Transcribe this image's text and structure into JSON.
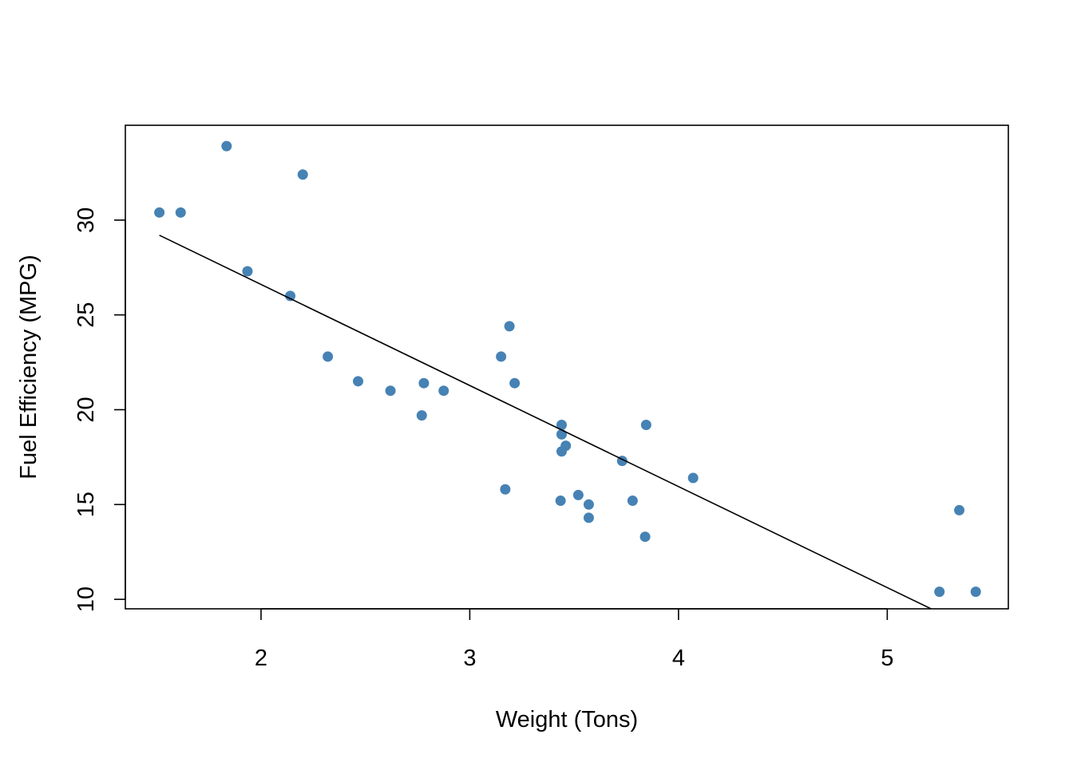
{
  "chart_data": {
    "type": "scatter",
    "title": "",
    "xlabel": "Weight (Tons)",
    "ylabel": "Fuel Efficiency (MPG)",
    "xlim": [
      1.35,
      5.58
    ],
    "ylim": [
      9.5,
      35.0
    ],
    "x_ticks": [
      2,
      3,
      4,
      5
    ],
    "y_ticks": [
      10,
      15,
      20,
      25,
      30
    ],
    "x_tick_labels": [
      "2",
      "3",
      "4",
      "5"
    ],
    "y_tick_labels": [
      "10",
      "15",
      "20",
      "25",
      "30"
    ],
    "grid": false,
    "legend": "none",
    "point_color": "#4682B4",
    "line_color": "#000000",
    "points": [
      {
        "x": 2.62,
        "y": 21.0
      },
      {
        "x": 2.875,
        "y": 21.0
      },
      {
        "x": 2.32,
        "y": 22.8
      },
      {
        "x": 3.215,
        "y": 21.4
      },
      {
        "x": 3.44,
        "y": 18.7
      },
      {
        "x": 3.46,
        "y": 18.1
      },
      {
        "x": 3.57,
        "y": 14.3
      },
      {
        "x": 3.19,
        "y": 24.4
      },
      {
        "x": 3.15,
        "y": 22.8
      },
      {
        "x": 3.44,
        "y": 19.2
      },
      {
        "x": 3.44,
        "y": 17.8
      },
      {
        "x": 4.07,
        "y": 16.4
      },
      {
        "x": 3.73,
        "y": 17.3
      },
      {
        "x": 3.78,
        "y": 15.2
      },
      {
        "x": 5.25,
        "y": 10.4
      },
      {
        "x": 5.424,
        "y": 10.4
      },
      {
        "x": 5.345,
        "y": 14.7
      },
      {
        "x": 2.2,
        "y": 32.4
      },
      {
        "x": 1.615,
        "y": 30.4
      },
      {
        "x": 1.835,
        "y": 33.9
      },
      {
        "x": 2.465,
        "y": 21.5
      },
      {
        "x": 3.52,
        "y": 15.5
      },
      {
        "x": 3.435,
        "y": 15.2
      },
      {
        "x": 3.84,
        "y": 13.3
      },
      {
        "x": 3.845,
        "y": 19.2
      },
      {
        "x": 1.935,
        "y": 27.3
      },
      {
        "x": 2.14,
        "y": 26.0
      },
      {
        "x": 1.513,
        "y": 30.4
      },
      {
        "x": 3.17,
        "y": 15.8
      },
      {
        "x": 2.77,
        "y": 19.7
      },
      {
        "x": 3.57,
        "y": 15.0
      },
      {
        "x": 2.78,
        "y": 21.4
      }
    ],
    "fit_line": {
      "x": [
        1.513,
        5.21
      ],
      "y": [
        29.2,
        9.5
      ]
    }
  }
}
